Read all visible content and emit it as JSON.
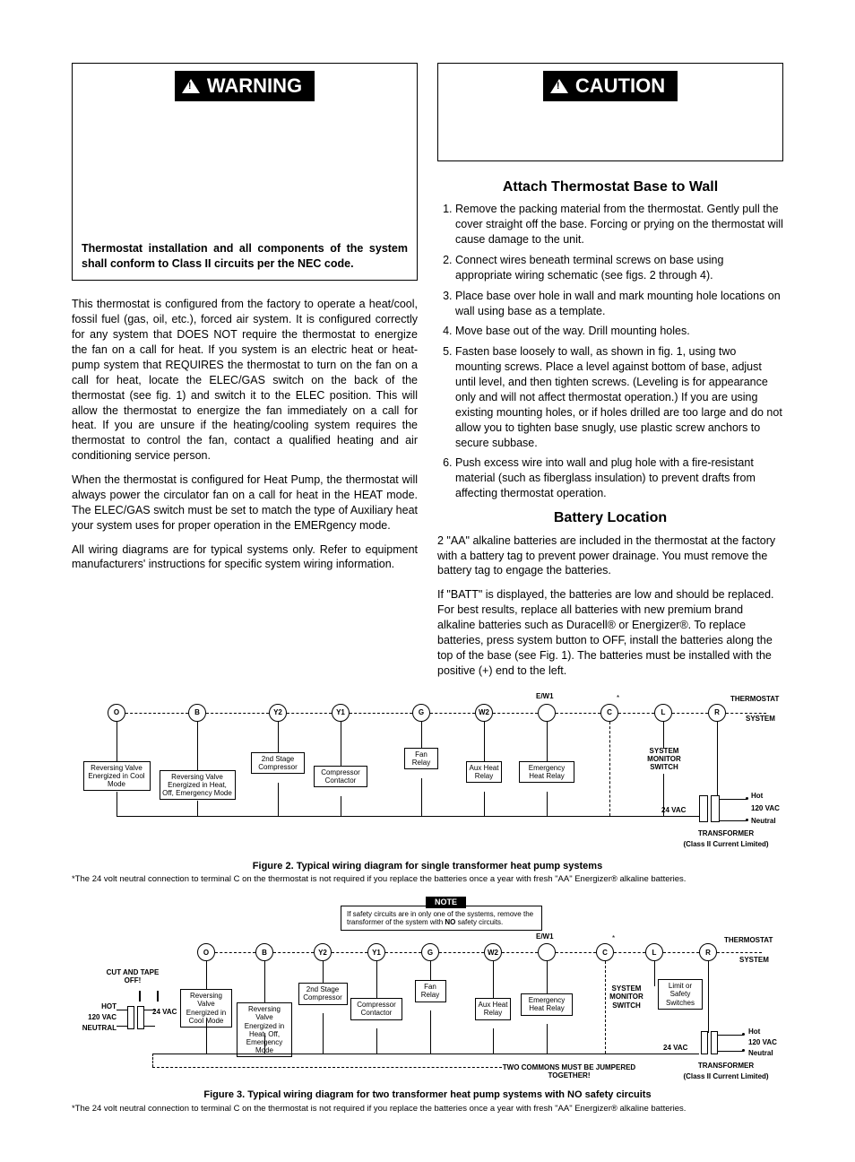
{
  "left": {
    "warning_label": "WARNING",
    "warning_text": "Thermostat installation and all components of the system shall conform to Class II circuits per the NEC code.",
    "p1": "This thermostat is configured from the factory to operate a heat/cool, fossil fuel (gas, oil, etc.), forced air system. It is configured correctly for any system that DOES NOT require the thermostat to energize the fan on a call for heat. If you system is an electric heat or heat-pump system that REQUIRES the thermostat to turn on the fan on a call for heat, locate the ELEC/GAS switch on the back of the thermostat (see fig. 1) and switch it to the ELEC position. This will allow the thermostat to energize the fan immediately on a call for heat. If you are unsure if the heating/cooling system requires the thermostat to control the fan, contact a qualified heating and air conditioning service person.",
    "p2": "When the thermostat is configured for Heat Pump, the thermostat will always power the circulator fan on a call for heat in the HEAT mode. The ELEC/GAS switch must be set to match the type of Auxiliary heat your system uses for proper operation in the EMERgency mode.",
    "p3": "All wiring diagrams are for typical systems only. Refer to equipment manufacturers' instructions for specific system wiring information."
  },
  "right": {
    "caution_label": "CAUTION",
    "h1": "Attach Thermostat Base to Wall",
    "li1": "Remove the packing material from the thermostat. Gently pull the cover straight off the base. Forcing or prying on the thermostat will cause damage to the unit.",
    "li2": "Connect wires beneath terminal screws on base using appropriate wiring schematic (see figs. 2 through 4).",
    "li3": "Place base over hole in wall and mark mounting hole locations on wall using base as a template.",
    "li4": "Move base out of the way. Drill mounting holes.",
    "li5": "Fasten base loosely to wall, as shown in fig. 1, using two mounting screws. Place a level against bottom of base, adjust until level, and then tighten screws. (Leveling is for appearance only and will not affect thermostat operation.) If you are using existing mounting holes, or if holes drilled are too large and do not allow you to tighten base snugly, use plastic screw anchors to secure subbase.",
    "li6": "Push excess wire into wall and plug hole with a fire-resistant material (such as fiberglass insulation) to prevent drafts from affecting thermostat operation.",
    "h2": "Battery Location",
    "p4": "2 \"AA\" alkaline batteries are included in the thermostat at the factory with a battery tag to prevent power drainage. You must remove the battery tag to engage the batteries.",
    "p5": "If \"BATT\" is displayed, the batteries are low and should be replaced. For best results, replace all batteries with new premium brand alkaline batteries such as Duracell® or Energizer®. To replace batteries, press system button to OFF, install the batteries along the top of the base (see Fig. 1). The batteries must be installed with the positive (+) end to the left."
  },
  "fig2": {
    "caption": "Figure 2. Typical wiring diagram for single transformer heat pump systems",
    "footnote": "*The 24 volt neutral connection to terminal C on the thermostat is not required if you replace the batteries once a year with fresh \"AA\" Energizer® alkaline batteries.",
    "terms": [
      "O",
      "B",
      "Y2",
      "Y1",
      "G",
      "W2",
      "",
      "C",
      "L",
      "R"
    ],
    "ew1": "E/W1",
    "thermostat": "THERMOSTAT",
    "system": "SYSTEM",
    "labels": [
      "Reversing Valve Energized in Cool Mode",
      "Reversing Valve Energized in Heat, Off, Emergency Mode",
      "2nd Stage Compressor",
      "Compressor Contactor",
      "Fan Relay",
      "Aux Heat Relay",
      "Emergency Heat Relay"
    ],
    "sms": "SYSTEM MONITOR SWITCH",
    "vac24": "24 VAC",
    "hot": "Hot",
    "vac120": "120 VAC",
    "neutral": "Neutral",
    "transformer": "TRANSFORMER",
    "classII": "(Class II Current Limited)"
  },
  "fig3": {
    "note_label": "NOTE",
    "note_text": "If safety circuits are in only one of the systems, remove the transformer of the system with NO safety circuits.",
    "caption": "Figure 3. Typical wiring diagram for two transformer heat pump systems with NO safety circuits",
    "footnote": "*The 24 volt neutral connection to terminal C on the thermostat is not required if you replace the batteries once a year with fresh \"AA\" Energizer® alkaline batteries.",
    "cut": "CUT AND TAPE OFF!",
    "hot_l": "HOT",
    "vac120_l": "120 VAC",
    "neutral_l": "NEUTRAL",
    "vac24_l": "24 VAC",
    "limit": "Limit or Safety Switches",
    "jumper": "TWO COMMONS MUST BE JUMPERED TOGETHER!"
  },
  "colors": {
    "black": "#000000",
    "white": "#ffffff"
  }
}
